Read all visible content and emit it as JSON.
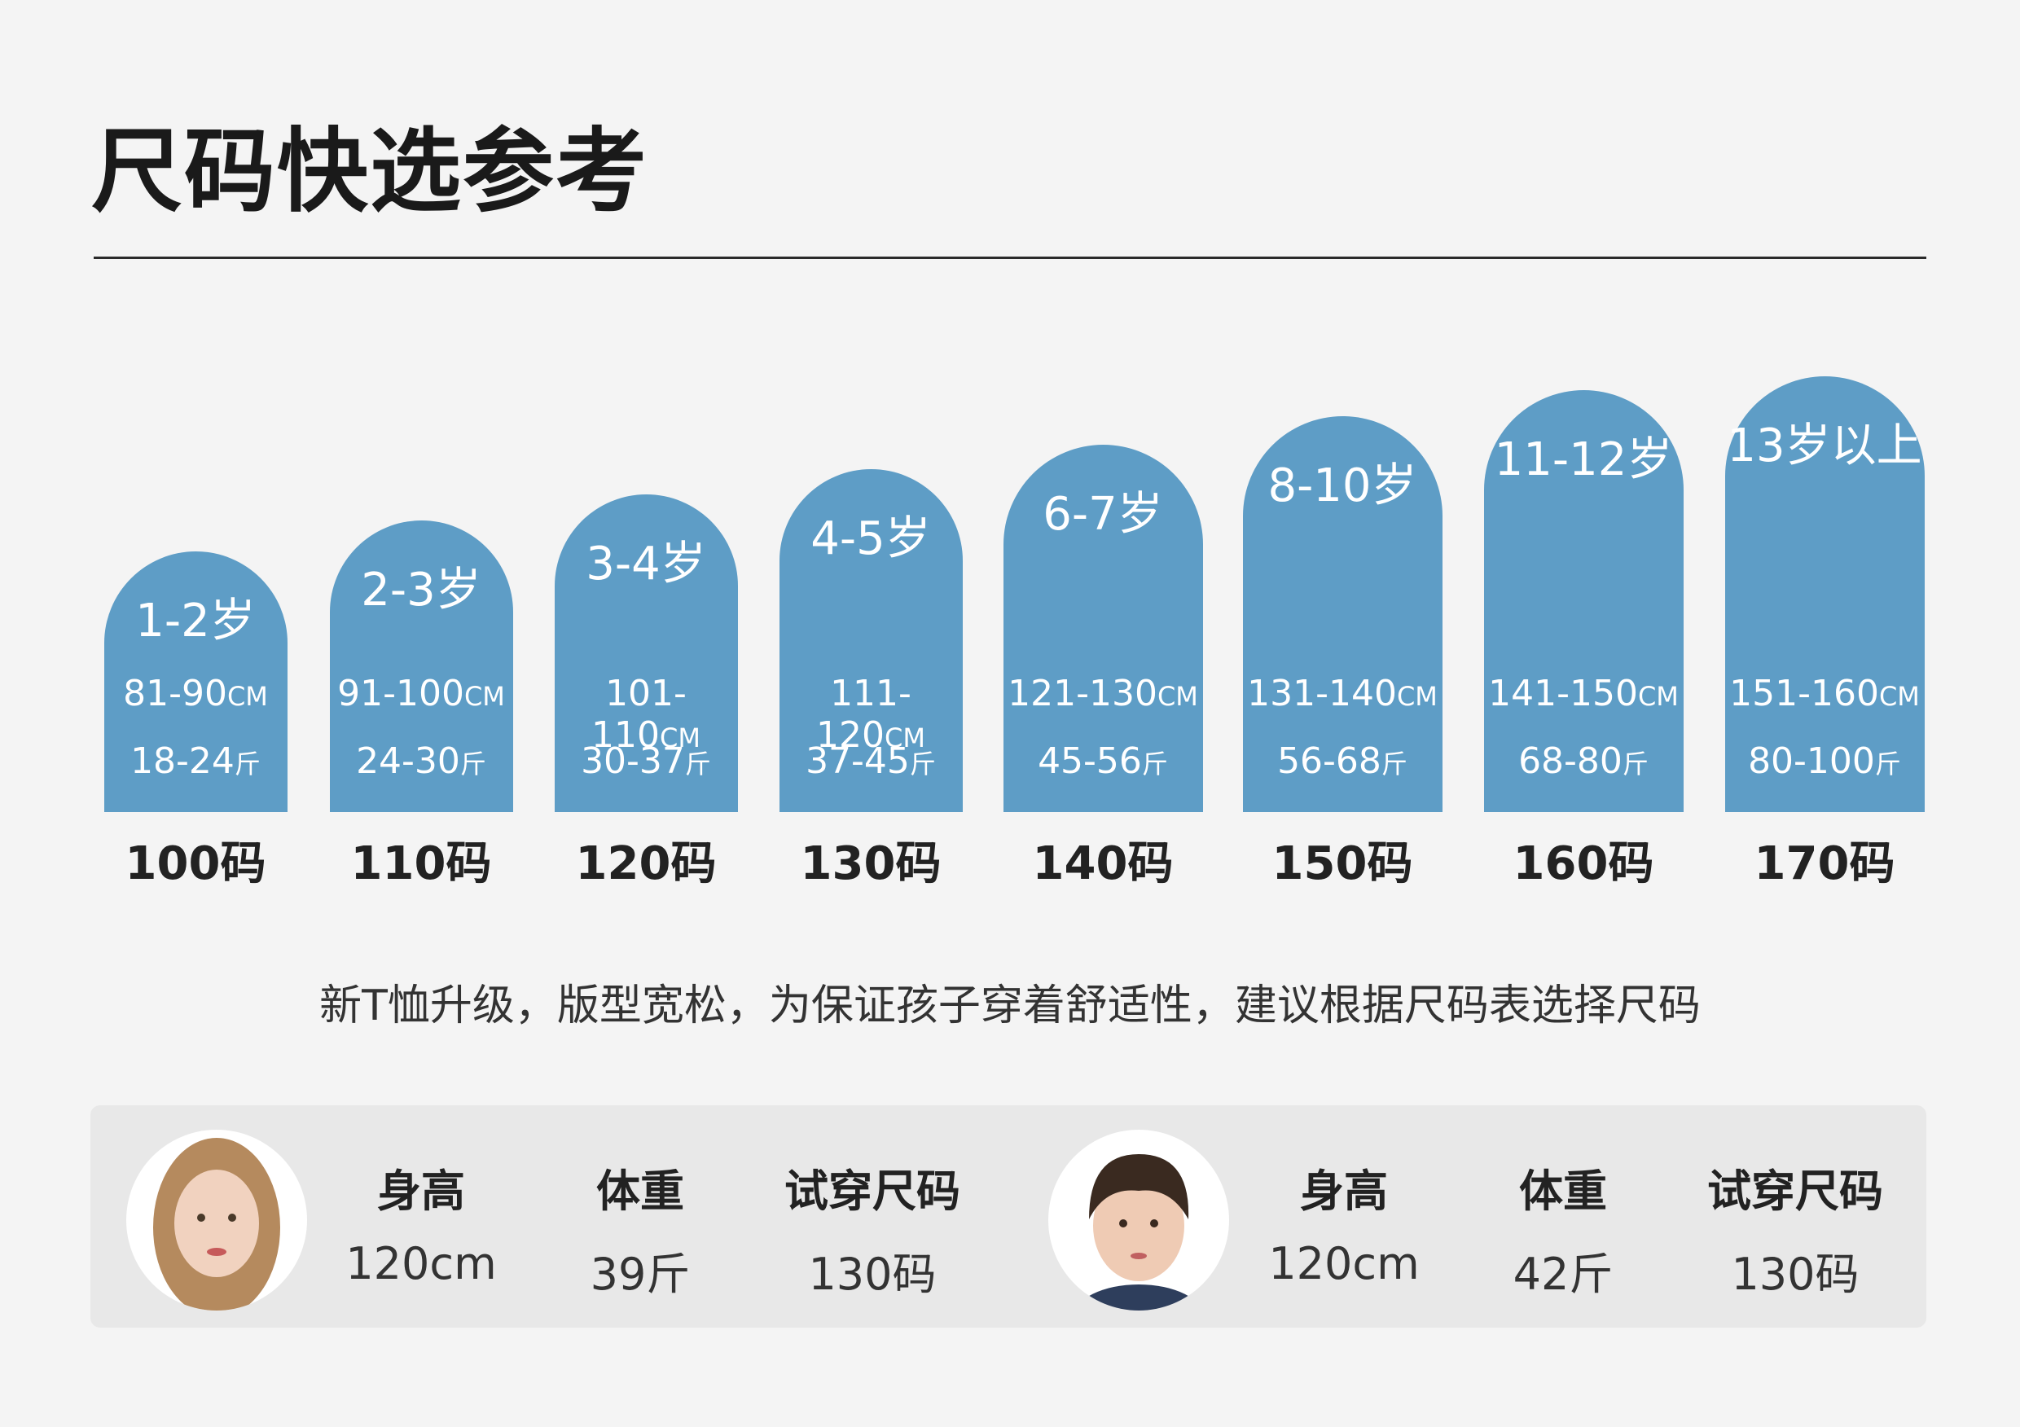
{
  "title": "尺码快选参考",
  "sizes": [
    {
      "age": "1-2岁",
      "height": "81-90",
      "height_unit": "cm",
      "weight": "18-24",
      "weight_unit": "斤",
      "size": "100码"
    },
    {
      "age": "2-3岁",
      "height": "91-100",
      "height_unit": "cm",
      "weight": "24-30",
      "weight_unit": "斤",
      "size": "110码"
    },
    {
      "age": "3-4岁",
      "height": "101-110",
      "height_unit": "cm",
      "weight": "30-37",
      "weight_unit": "斤",
      "size": "120码"
    },
    {
      "age": "4-5岁",
      "height": "111-120",
      "height_unit": "cm",
      "weight": "37-45",
      "weight_unit": "斤",
      "size": "130码"
    },
    {
      "age": "6-7岁",
      "height": "121-130",
      "height_unit": "cm",
      "weight": "45-56",
      "weight_unit": "斤",
      "size": "140码"
    },
    {
      "age": "8-10岁",
      "height": "131-140",
      "height_unit": "cm",
      "weight": "56-68",
      "weight_unit": "斤",
      "size": "150码"
    },
    {
      "age": "11-12岁",
      "height": "141-150",
      "height_unit": "cm",
      "weight": "68-80",
      "weight_unit": "斤",
      "size": "160码"
    },
    {
      "age": "13岁以上",
      "height": "151-160",
      "height_unit": "cm",
      "weight": "80-100",
      "weight_unit": "斤",
      "size": "170码"
    }
  ],
  "note": "新T恤升级，版型宽松，为保证孩子穿着舒适性，建议根据尺码表选择尺码",
  "models": [
    {
      "headers": [
        "身高",
        "体重",
        "试穿尺码"
      ],
      "values": [
        "120cm",
        "39斤",
        "130码"
      ]
    },
    {
      "headers": [
        "身高",
        "体重",
        "试穿尺码"
      ],
      "values": [
        "120cm",
        "42斤",
        "130码"
      ]
    }
  ]
}
